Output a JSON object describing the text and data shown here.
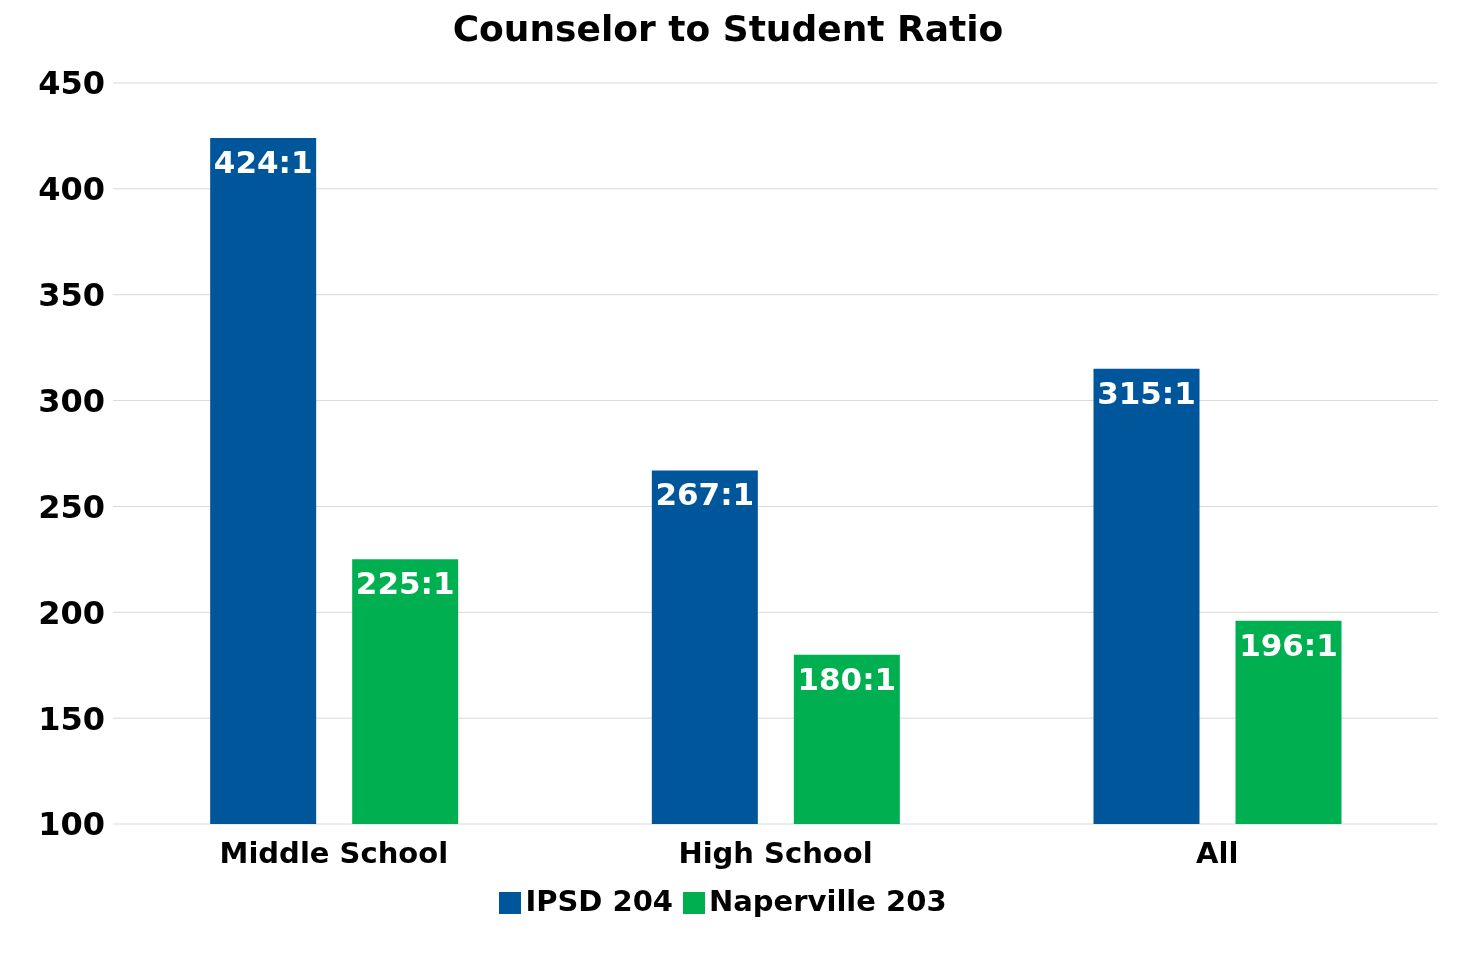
{
  "chart_data": {
    "type": "bar",
    "title": "Counselor to Student Ratio",
    "categories": [
      "Middle School",
      "High School",
      "All"
    ],
    "series": [
      {
        "name": "IPSD 204",
        "color": "#00569a",
        "values": [
          424,
          267,
          315
        ],
        "value_labels": [
          "424:1",
          "267:1",
          "315:1"
        ]
      },
      {
        "name": "Naperville 203",
        "color": "#00b050",
        "values": [
          225,
          180,
          196
        ],
        "value_labels": [
          "225:1",
          "180:1",
          "196:1"
        ]
      }
    ],
    "ylim": [
      100,
      450
    ],
    "yticks": [
      100,
      150,
      200,
      250,
      300,
      350,
      400,
      450
    ],
    "grid": "y",
    "legend": "bottom"
  }
}
